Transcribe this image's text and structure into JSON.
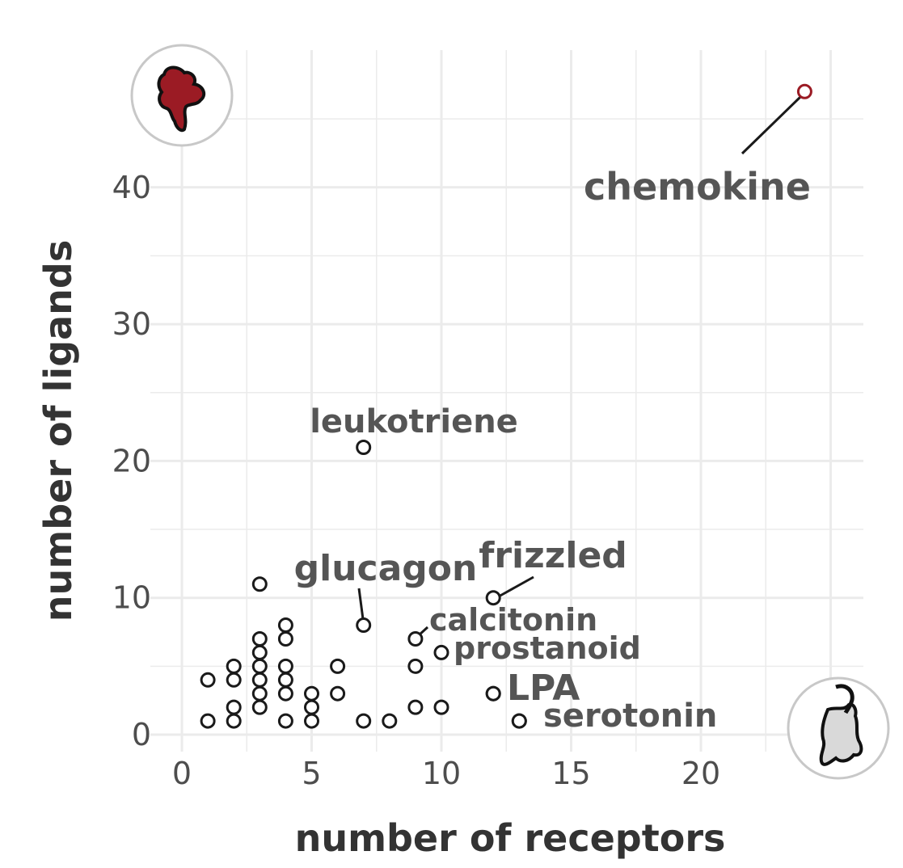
{
  "chart_data": {
    "type": "scatter",
    "xlabel": "number of receptors",
    "ylabel": "number of ligands",
    "xlim": [
      -1.5,
      26
    ],
    "ylim": [
      -1,
      48
    ],
    "xticks": [
      0,
      5,
      10,
      15,
      20
    ],
    "yticks": [
      0,
      10,
      20,
      30,
      40
    ],
    "grid": true,
    "highlight_color": "#9b1b24",
    "point_color": "#1a1a1a",
    "points": [
      {
        "x": 1,
        "y": 1
      },
      {
        "x": 1,
        "y": 4
      },
      {
        "x": 2,
        "y": 1
      },
      {
        "x": 2,
        "y": 2
      },
      {
        "x": 2,
        "y": 4
      },
      {
        "x": 2,
        "y": 5
      },
      {
        "x": 3,
        "y": 2
      },
      {
        "x": 3,
        "y": 3
      },
      {
        "x": 3,
        "y": 4
      },
      {
        "x": 3,
        "y": 5
      },
      {
        "x": 3,
        "y": 6
      },
      {
        "x": 3,
        "y": 7
      },
      {
        "x": 3,
        "y": 11
      },
      {
        "x": 4,
        "y": 1
      },
      {
        "x": 4,
        "y": 3
      },
      {
        "x": 4,
        "y": 4
      },
      {
        "x": 4,
        "y": 5
      },
      {
        "x": 4,
        "y": 7
      },
      {
        "x": 4,
        "y": 8
      },
      {
        "x": 5,
        "y": 1
      },
      {
        "x": 5,
        "y": 2
      },
      {
        "x": 5,
        "y": 3
      },
      {
        "x": 6,
        "y": 3
      },
      {
        "x": 6,
        "y": 5
      },
      {
        "x": 7,
        "y": 1
      },
      {
        "x": 8,
        "y": 1
      },
      {
        "x": 9,
        "y": 2
      },
      {
        "x": 9,
        "y": 5
      },
      {
        "x": 10,
        "y": 2
      },
      {
        "x": 12,
        "y": 3
      },
      {
        "x": 13,
        "y": 1
      }
    ],
    "labeled_points": [
      {
        "label": "chemokine",
        "x": 24,
        "y": 47,
        "highlight": true
      },
      {
        "label": "leukotriene",
        "x": 7,
        "y": 21
      },
      {
        "label": "glucagon",
        "x": 7,
        "y": 8
      },
      {
        "label": "frizzled",
        "x": 12,
        "y": 10
      },
      {
        "label": "calcitonin",
        "x": 9,
        "y": 7
      },
      {
        "label": "prostanoid",
        "x": 10,
        "y": 6
      },
      {
        "label": "LPA",
        "x": 12,
        "y": 3
      },
      {
        "label": "serotonin",
        "x": 13,
        "y": 1
      }
    ],
    "corner_icons": [
      {
        "name": "chemokine-ligand-blob-icon",
        "fill": "#9b1b24",
        "placement": "top-left"
      },
      {
        "name": "receptor-blob-icon",
        "fill": "#d9d9d9",
        "placement": "bottom-right"
      }
    ]
  }
}
